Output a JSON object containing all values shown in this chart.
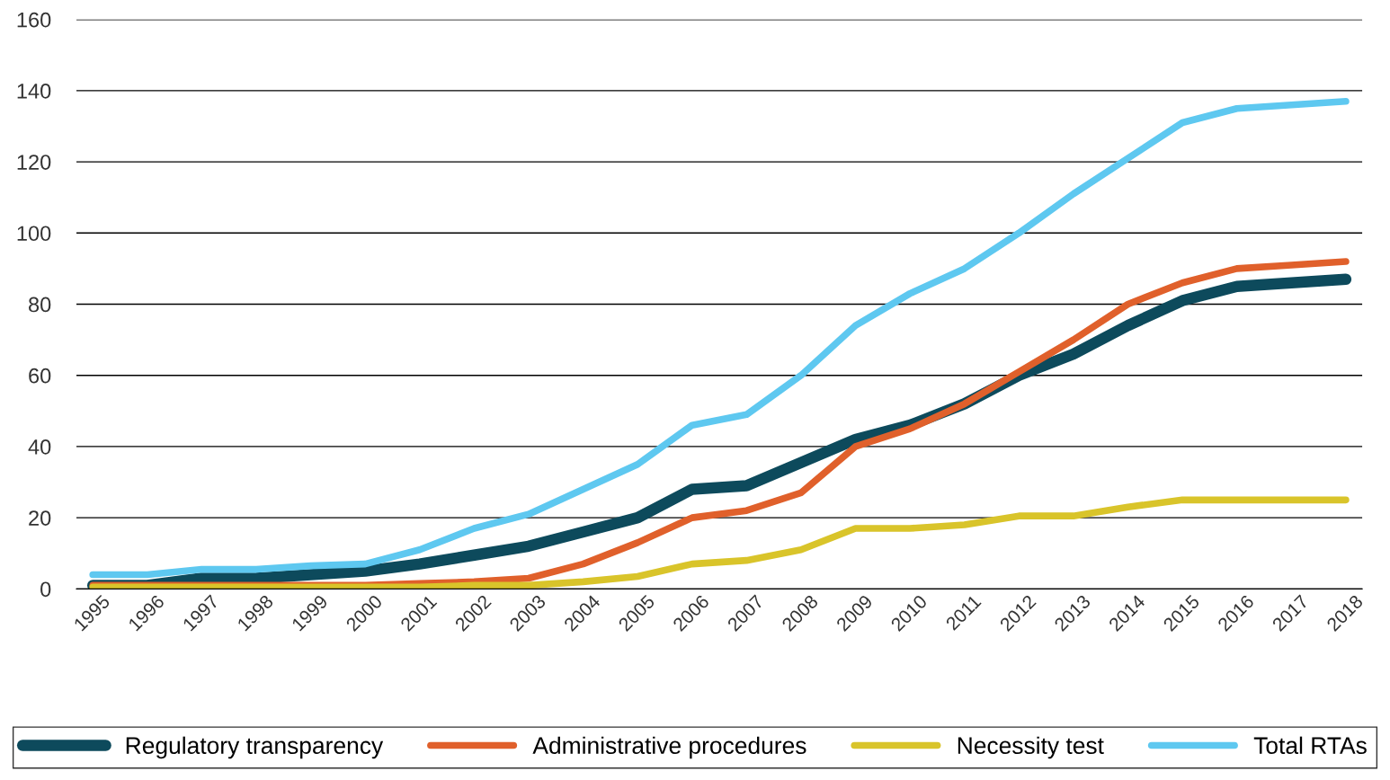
{
  "chart_data": {
    "type": "line",
    "categories": [
      "1995",
      "1996",
      "1997",
      "1998",
      "1999",
      "2000",
      "2001",
      "2002",
      "2003",
      "2004",
      "2005",
      "2006",
      "2007",
      "2008",
      "2009",
      "2010",
      "2011",
      "2012",
      "2013",
      "2014",
      "2015",
      "2016",
      "2017",
      "2018"
    ],
    "series": [
      {
        "name": "Regulatory transparency",
        "color": "#0d4a5c",
        "values": [
          1,
          1,
          3,
          3,
          4,
          5,
          7,
          9.5,
          12,
          16,
          20,
          28,
          29,
          35.5,
          42,
          46,
          52,
          60,
          66,
          74,
          81,
          85,
          86,
          87
        ]
      },
      {
        "name": "Administrative procedures",
        "color": "#e0602b",
        "values": [
          1,
          1,
          1,
          1,
          1,
          1,
          1.5,
          2,
          3,
          7,
          13,
          20,
          22,
          27,
          40,
          45,
          52,
          61,
          70,
          80,
          86,
          90,
          91,
          92
        ]
      },
      {
        "name": "Necessity test",
        "color": "#d9c42a",
        "values": [
          0.5,
          0.5,
          0.5,
          0.5,
          0.5,
          0.5,
          0.5,
          1,
          1,
          2,
          3.5,
          7,
          8,
          11,
          17,
          17,
          18,
          20.5,
          20.5,
          23,
          25,
          25,
          25,
          25
        ]
      },
      {
        "name": "Total RTAs",
        "color": "#5ec8f0",
        "values": [
          4,
          4,
          5.5,
          5.5,
          6.5,
          7,
          11,
          17,
          21,
          28,
          35,
          46,
          49,
          60,
          74,
          83,
          90,
          100,
          111,
          121,
          131,
          135,
          136,
          137
        ]
      }
    ],
    "ylim": [
      0,
      160
    ],
    "yticks": [
      0,
      20,
      40,
      60,
      80,
      100,
      120,
      140,
      160
    ],
    "grid": "y",
    "legend": "bottom",
    "marker": "none",
    "line_style": "solid"
  }
}
